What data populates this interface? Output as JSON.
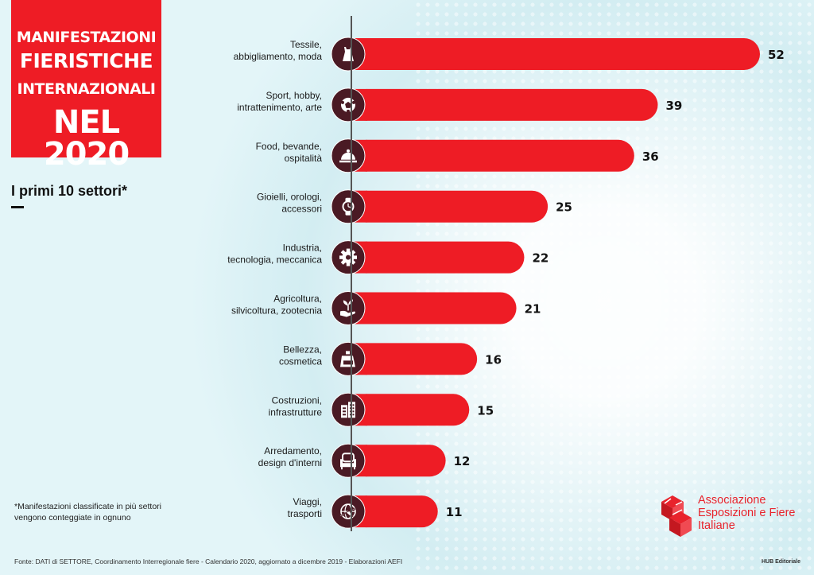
{
  "header": {
    "title_line1": "MANIFESTAZIONI",
    "title_line2": "FIERISTICHE",
    "title_line3": "INTERNAZIONALI",
    "title_line4": "NEL 2020",
    "subtitle": "I primi 10 settori*"
  },
  "footnote": {
    "line1": "*Manifestazioni classificate in più settori",
    "line2": "vengono conteggiate in ognuno"
  },
  "source": "Fonte: DATI di SETTORE, Coordinamento Interregionale fiere - Calendario 2020, aggiornato a dicembre 2019 - Elaborazioni AEFI",
  "credit": "HUB Editoriale",
  "logo": {
    "line1": "Associazione",
    "line2": "Esposizioni e Fiere",
    "line3": "Italiane"
  },
  "colors": {
    "bar": "#ee1c25",
    "icon_circle": "#4a1a24",
    "background": "#e3f5f8"
  },
  "chart_data": {
    "type": "bar",
    "orientation": "horizontal",
    "title": "MANIFESTAZIONI FIERISTICHE INTERNAZIONALI NEL 2020",
    "subtitle": "I primi 10 settori*",
    "xlabel": "",
    "ylabel": "",
    "grid": false,
    "categories": [
      [
        "Tessile,",
        "abbigliamento, moda"
      ],
      [
        "Sport, hobby,",
        "intrattenimento,  arte"
      ],
      [
        "Food, bevande,",
        "ospitalità"
      ],
      [
        "Gioielli, orologi,",
        "accessori"
      ],
      [
        "Industria,",
        "tecnologia, meccanica"
      ],
      [
        "Agricoltura,",
        "silvicoltura, zootecnia"
      ],
      [
        "Bellezza,",
        "cosmetica"
      ],
      [
        "Costruzioni,",
        "infrastrutture"
      ],
      [
        "Arredamento,",
        "design d'interni"
      ],
      [
        "Viaggi,",
        "trasporti"
      ]
    ],
    "icons": [
      "dress-icon",
      "soccer-ball-icon",
      "cloche-icon",
      "watch-icon",
      "gear-icon",
      "plant-hand-icon",
      "perfume-icon",
      "building-icon",
      "armchair-icon",
      "globe-plane-icon"
    ],
    "values": [
      52,
      39,
      36,
      25,
      22,
      21,
      16,
      15,
      12,
      11
    ],
    "xlim": [
      0,
      52
    ]
  }
}
